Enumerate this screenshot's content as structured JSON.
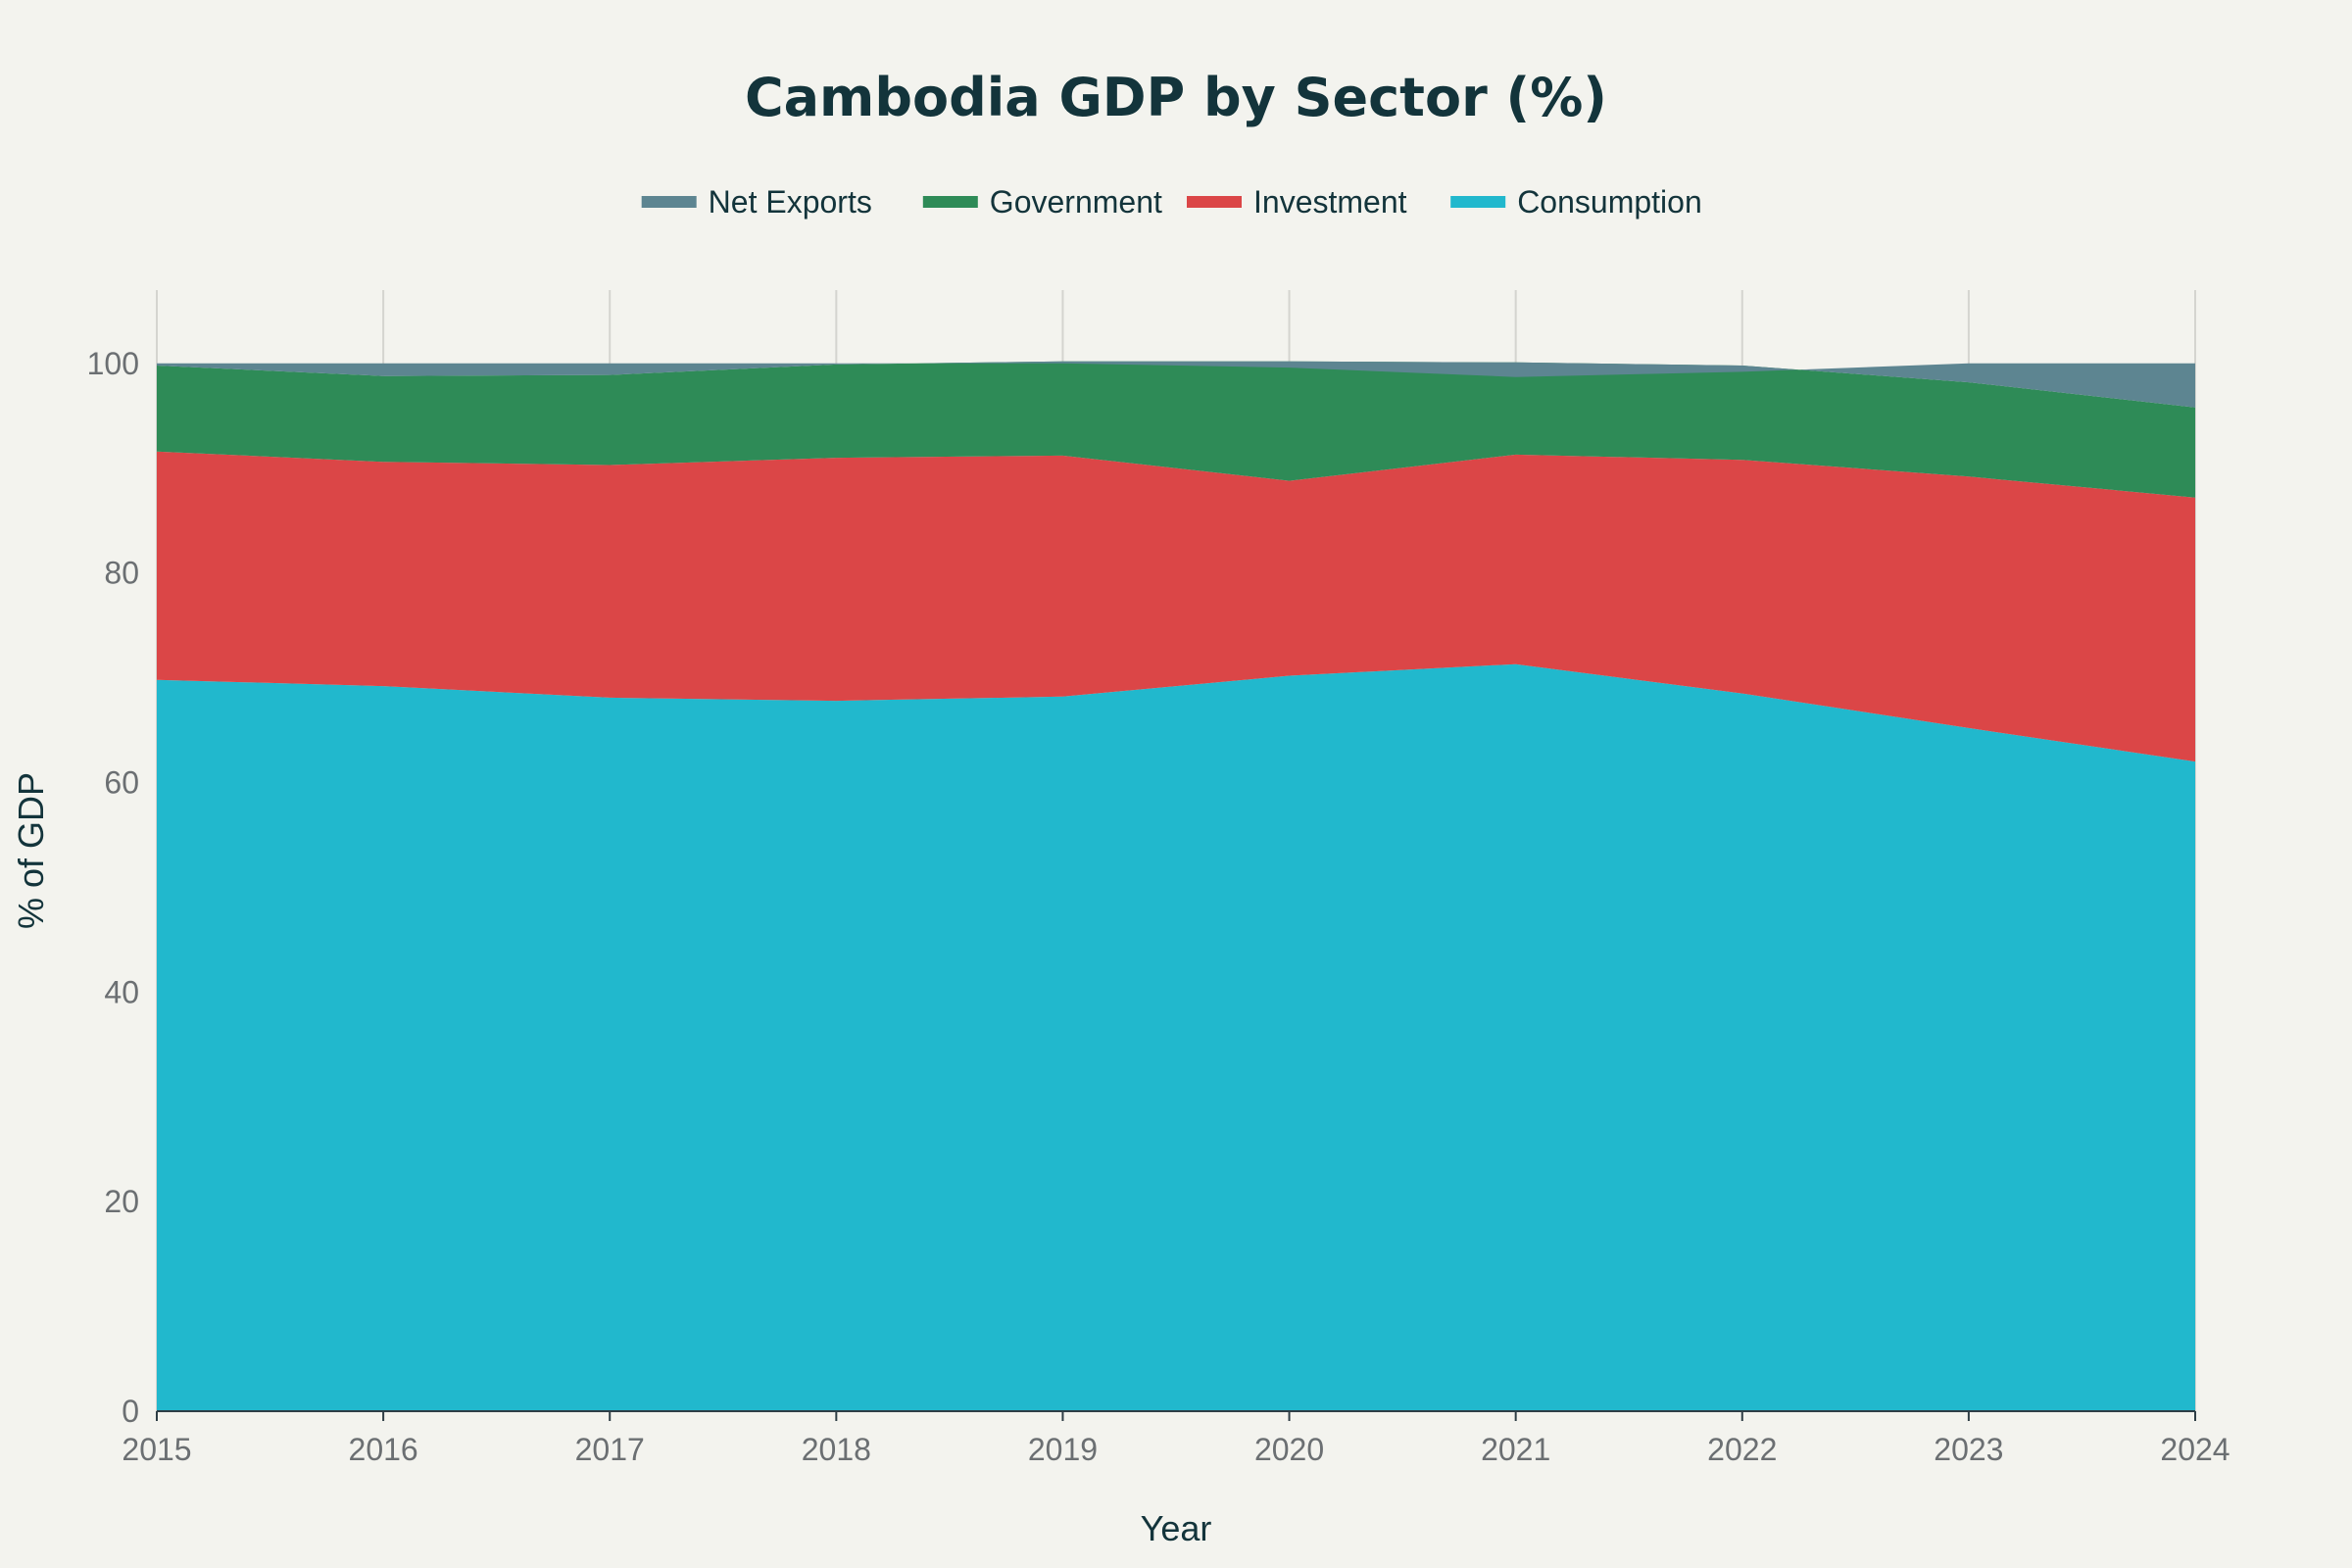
{
  "chart_data": {
    "type": "area",
    "stacked": true,
    "title": "Cambodia GDP by Sector (%)",
    "xlabel": "Year",
    "ylabel": "% of GDP",
    "x": [
      2015,
      2016,
      2017,
      2018,
      2019,
      2020,
      2021,
      2022,
      2023,
      2024
    ],
    "ylim": [
      0,
      107
    ],
    "yticks": [
      0,
      20,
      40,
      60,
      80,
      100
    ],
    "grid": "vertical",
    "legend_position": "top-center",
    "series": [
      {
        "name": "Consumption",
        "color": "#21b8cd",
        "values": [
          69.8,
          69.2,
          68.1,
          67.8,
          68.2,
          70.2,
          71.3,
          68.5,
          65.2,
          62.0
        ]
      },
      {
        "name": "Investment",
        "color": "#db4647",
        "values": [
          21.8,
          21.4,
          22.2,
          23.2,
          23.0,
          18.6,
          20.0,
          22.3,
          24.0,
          25.2
        ]
      },
      {
        "name": "Government",
        "color": "#2e8b57",
        "values": [
          8.2,
          8.2,
          8.6,
          8.9,
          9.0,
          11.4,
          8.8,
          9.0,
          9.0,
          8.6
        ]
      },
      {
        "name": "Net Exports",
        "color": "#5d8591",
        "values": [
          0.2,
          1.2,
          1.1,
          0.1,
          -0.2,
          -0.6,
          -1.4,
          -0.6,
          1.8,
          4.2
        ]
      }
    ],
    "legend_order": [
      "Net Exports",
      "Government",
      "Investment",
      "Consumption"
    ]
  }
}
